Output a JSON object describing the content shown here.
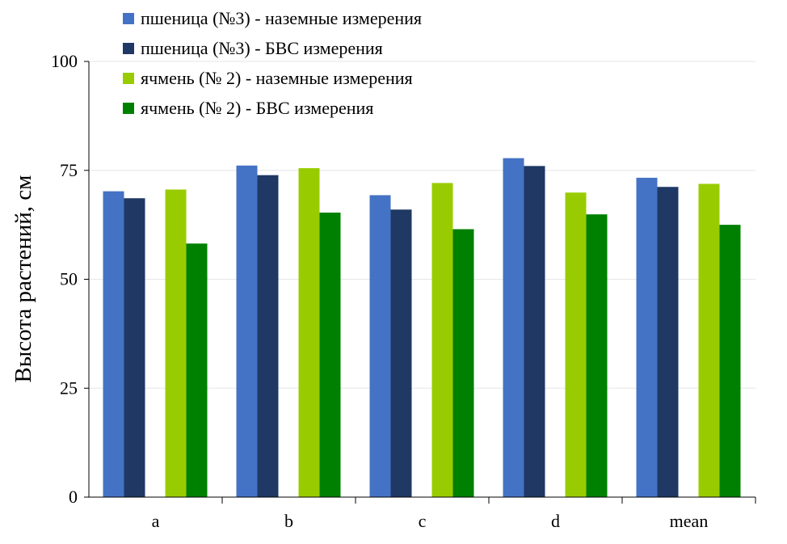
{
  "chart_data": {
    "type": "bar",
    "categories": [
      "a",
      "b",
      "c",
      "d",
      "mean"
    ],
    "ylabel": "Высота растений, см",
    "xlabel": "",
    "ylim": [
      0,
      100
    ],
    "yticks": [
      0,
      25,
      50,
      75,
      100
    ],
    "grid": true,
    "legend_position": "top-left",
    "colors": [
      "#4472c4",
      "#1f3864",
      "#99cc00",
      "#008000"
    ],
    "series": [
      {
        "name": "пшеница (№3) - наземные измерения",
        "values": [
          70.2,
          76.1,
          69.3,
          77.8,
          73.3
        ]
      },
      {
        "name": "пшеница (№3) - БВС измерения",
        "values": [
          68.6,
          73.9,
          66.0,
          76.0,
          71.2
        ]
      },
      {
        "name": "ячмень (№ 2) - наземные измерения",
        "values": [
          70.6,
          75.5,
          72.1,
          69.9,
          71.9
        ]
      },
      {
        "name": "ячмень (№ 2) - БВС измерения",
        "values": [
          58.2,
          65.3,
          61.5,
          64.9,
          62.5
        ]
      }
    ]
  }
}
